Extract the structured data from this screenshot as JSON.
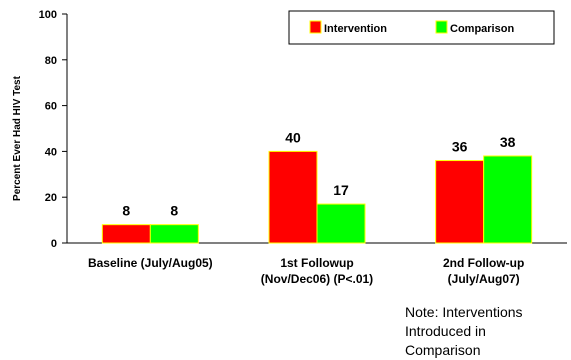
{
  "chart_data": {
    "type": "bar",
    "ylabel": "Percent Ever Had HIV Test",
    "ylim": [
      0,
      100
    ],
    "yticks": [
      0,
      20,
      40,
      60,
      80,
      100
    ],
    "categories": [
      [
        "Baseline (July/Aug05)"
      ],
      [
        "1st Followup",
        "(Nov/Dec06) (P<.01)"
      ],
      [
        "2nd Follow-up",
        "(July/Aug07)"
      ]
    ],
    "series": [
      {
        "name": "Intervention",
        "values": [
          8,
          40,
          36
        ],
        "color": "#ff0000"
      },
      {
        "name": "Comparison",
        "values": [
          8,
          17,
          38
        ],
        "color": "#00ff00"
      }
    ],
    "bar_edge_color": "#ffff00",
    "legend_position": "top-right",
    "grid": false
  },
  "note": {
    "lines": [
      "Note: Interventions",
      "Introduced in",
      "Comparison"
    ]
  }
}
